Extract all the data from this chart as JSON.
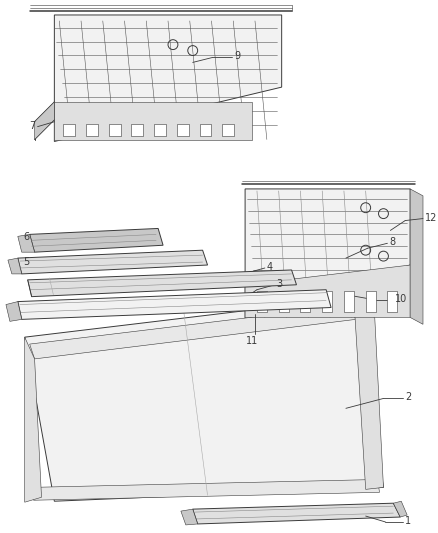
{
  "bg_color": "#ffffff",
  "line_color": "#3a3a3a",
  "fill_light": "#f2f2f2",
  "fill_mid": "#e0e0e0",
  "fill_dark": "#c8c8c8",
  "figsize": [
    4.38,
    5.33
  ],
  "dpi": 100,
  "label_font": 7.0,
  "lw_main": 0.7,
  "lw_thin": 0.4,
  "lw_thick": 1.1
}
